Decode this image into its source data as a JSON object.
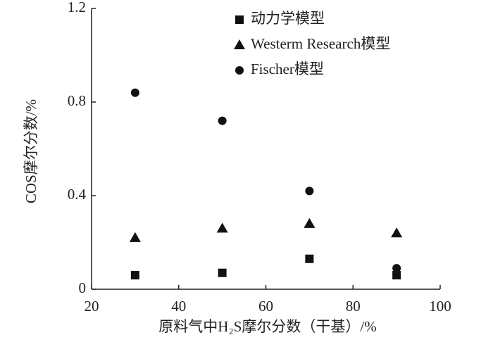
{
  "chart_data": {
    "type": "scatter",
    "xlabel": "原料气中H₂S摩尔分数（干基）/%",
    "ylabel": "COS摩尔分数/%",
    "xlim": [
      20,
      100
    ],
    "xticks": [
      20,
      40,
      60,
      80,
      100
    ],
    "ylim": [
      0,
      1.2
    ],
    "yticks": [
      0,
      0.4,
      0.8,
      1.2
    ],
    "legend": "upper-right",
    "series": [
      {
        "name": "动力学模型",
        "color": "#111111",
        "marker": "square",
        "x": [
          30,
          50,
          70,
          90
        ],
        "values": [
          0.06,
          0.07,
          0.13,
          0.06
        ]
      },
      {
        "name": "Westerm Research模型",
        "color": "#111111",
        "marker": "triangle",
        "x": [
          30,
          50,
          70,
          90
        ],
        "values": [
          0.22,
          0.26,
          0.28,
          0.24
        ]
      },
      {
        "name": "Fischer模型",
        "color": "#111111",
        "marker": "circle",
        "x": [
          30,
          50,
          70,
          90
        ],
        "values": [
          0.84,
          0.72,
          0.42,
          0.09
        ]
      }
    ]
  }
}
